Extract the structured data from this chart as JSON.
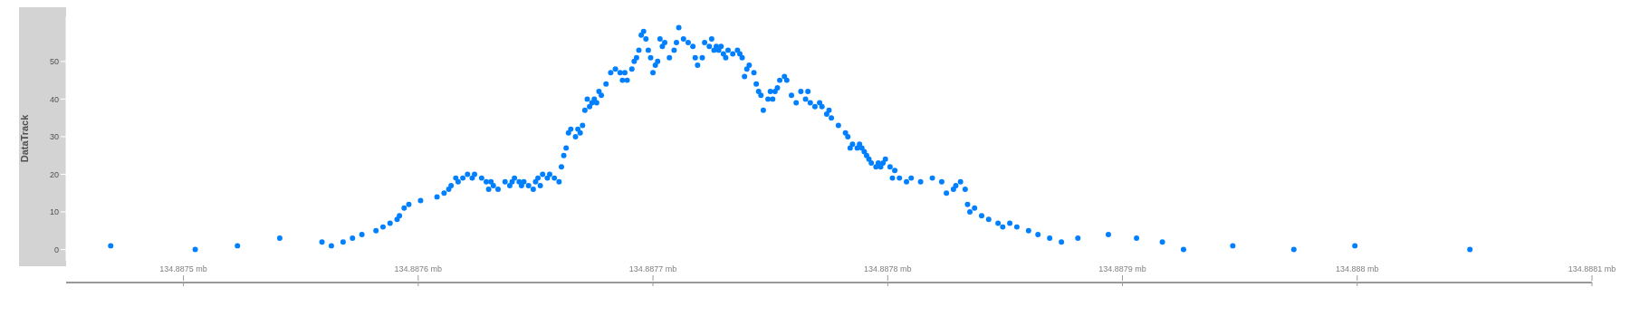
{
  "chart_data": {
    "type": "scatter",
    "ylabel": "DataTrack",
    "marker": "circle",
    "xlim": [
      134.88745,
      134.8881
    ],
    "ylim": [
      -3,
      62
    ],
    "yticks": [
      0,
      10,
      20,
      30,
      40,
      50
    ],
    "xticks": [
      {
        "value": 134.8875,
        "label": "134.8875 mb"
      },
      {
        "value": 134.8876,
        "label": "134.8876 mb"
      },
      {
        "value": 134.8877,
        "label": "134.8877 mb"
      },
      {
        "value": 134.8878,
        "label": "134.8878 mb"
      },
      {
        "value": 134.8879,
        "label": "134.8879 mb"
      },
      {
        "value": 134.888,
        "label": "134.888 mb"
      },
      {
        "value": 134.8881,
        "label": "134.8881 mb"
      }
    ],
    "series": [
      {
        "color": "#0080ff",
        "x": [
          134.887469,
          134.887505,
          134.887523,
          134.887541,
          134.887559,
          134.887563,
          134.887568,
          134.887572,
          134.887576,
          134.887582,
          134.887585,
          134.887588,
          134.887591,
          134.887592,
          134.887594,
          134.887596,
          134.887601,
          134.887608,
          134.887611,
          134.887613,
          134.887614,
          134.887616,
          134.887617,
          134.887619,
          134.887621,
          134.887623,
          134.887624,
          134.887627,
          134.887629,
          134.88763,
          134.887631,
          134.887632,
          134.887634,
          134.887637,
          134.887639,
          134.88764,
          134.887641,
          134.887643,
          134.887644,
          134.887645,
          134.887647,
          134.887649,
          134.88765,
          134.887651,
          134.887652,
          134.887653,
          134.887655,
          134.887656,
          134.887658,
          134.88766,
          134.887661,
          134.887662,
          134.887663,
          134.887664,
          134.887665,
          134.887667,
          134.887668,
          134.887669,
          134.88767,
          134.887671,
          134.887672,
          134.887673,
          134.887674,
          134.887675,
          134.887676,
          134.887677,
          134.887678,
          134.88768,
          134.887682,
          134.887684,
          134.887686,
          134.887687,
          134.887688,
          134.887689,
          134.887691,
          134.887692,
          134.887693,
          134.887694,
          134.887695,
          134.887696,
          134.887697,
          134.887698,
          134.887699,
          134.8877,
          134.887701,
          134.887702,
          134.887703,
          134.887704,
          134.887705,
          134.887707,
          134.887709,
          134.88771,
          134.887711,
          134.887713,
          134.887715,
          134.887717,
          134.887718,
          134.887719,
          134.887721,
          134.887722,
          134.887724,
          134.887725,
          134.887726,
          134.887727,
          134.887728,
          134.887729,
          134.88773,
          134.887731,
          134.887732,
          134.887734,
          134.887736,
          134.887737,
          134.887738,
          134.887739,
          134.88774,
          134.887741,
          134.887743,
          134.887744,
          134.887745,
          134.887746,
          134.887747,
          134.887749,
          134.88775,
          134.887751,
          134.887752,
          134.887753,
          134.887754,
          134.887756,
          134.887757,
          134.887759,
          134.887761,
          134.887763,
          134.887765,
          134.887766,
          134.887767,
          134.887769,
          134.887771,
          134.887772,
          134.887774,
          134.887775,
          134.887776,
          134.887779,
          134.887782,
          134.887783,
          134.887784,
          134.887785,
          134.887787,
          134.887788,
          134.887789,
          134.88779,
          134.887791,
          134.887792,
          134.887793,
          134.887795,
          134.887796,
          134.887797,
          134.887798,
          134.887799,
          134.887801,
          134.887802,
          134.887803,
          134.887805,
          134.887808,
          134.88781,
          134.887814,
          134.887819,
          134.887823,
          134.887825,
          134.887828,
          134.887829,
          134.887831,
          134.887833,
          134.887834,
          134.887835,
          134.887837,
          134.88784,
          134.887843,
          134.887847,
          134.887849,
          134.887852,
          134.887855,
          134.88786,
          134.887864,
          134.887869,
          134.887874,
          134.887881,
          134.887894,
          134.887906,
          134.887917,
          134.887926,
          134.887947,
          134.887973,
          134.887999,
          134.888048
        ],
        "values": [
          1,
          0,
          1,
          3,
          2,
          1,
          2,
          3,
          4,
          5,
          6,
          7,
          8,
          9,
          11,
          12,
          13,
          14,
          15,
          16,
          17,
          19,
          18,
          19,
          20,
          19,
          20,
          19,
          18,
          16,
          18,
          17,
          16,
          18,
          17,
          18,
          19,
          18,
          17,
          18,
          17,
          16,
          18,
          19,
          17,
          20,
          19,
          20,
          19,
          18,
          22,
          25,
          27,
          31,
          32,
          30,
          32,
          31,
          33,
          37,
          40,
          38,
          39,
          40,
          39,
          42,
          41,
          44,
          47,
          48,
          47,
          45,
          47,
          45,
          48,
          50,
          51,
          53,
          57,
          58,
          56,
          53,
          51,
          47,
          49,
          50,
          56,
          54,
          55,
          51,
          53,
          55,
          59,
          56,
          55,
          54,
          51,
          49,
          51,
          55,
          54,
          56,
          53,
          54,
          53,
          54,
          52,
          51,
          53,
          52,
          53,
          52,
          51,
          46,
          48,
          49,
          47,
          44,
          42,
          41,
          37,
          40,
          42,
          40,
          42,
          43,
          45,
          46,
          45,
          41,
          39,
          42,
          40,
          42,
          39,
          38,
          39,
          38,
          36,
          37,
          35,
          33,
          31,
          30,
          27,
          28,
          27,
          28,
          27,
          26,
          25,
          24,
          23,
          22,
          23,
          22,
          23,
          24,
          22,
          19,
          21,
          19,
          18,
          19,
          18,
          19,
          18,
          15,
          16,
          17,
          18,
          16,
          12,
          10,
          11,
          9,
          8,
          7,
          6,
          7,
          6,
          5,
          4,
          3,
          2,
          3,
          4,
          3,
          2,
          0,
          1,
          0,
          1,
          0
        ]
      }
    ]
  }
}
